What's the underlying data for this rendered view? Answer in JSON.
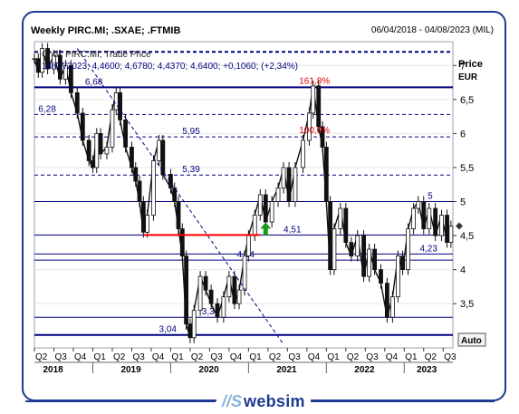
{
  "header": {
    "title": "Weekly PIRC.MI; .SXAE; .FTMIB",
    "range": "06/04/2018 - 04/08/2023 (MIL)"
  },
  "legend": {
    "line1": "Cndl; PIRC.MI; Trade Price",
    "line2": "14/07/2023; 4,4600; 4,6780; 4,4370; 4,6400; +0,1060; (+2,34%)"
  },
  "axis": {
    "price_label": "Price",
    "currency_label": "EUR",
    "auto_label": "Auto"
  },
  "footer": {
    "brand": "websim"
  },
  "colors": {
    "frame": "#1f3a93",
    "level_line": "#000080",
    "fib_text": "#e00000",
    "support_line": "#ff0000",
    "arrow": "#1a9a1a",
    "trend_line": "#000080"
  },
  "chart_data": {
    "type": "candlestick",
    "y_range": [
      2.85,
      7.35
    ],
    "y_ticks": [
      {
        "v": 7,
        "label": "7"
      },
      {
        "v": 6.5,
        "label": "6,5"
      },
      {
        "v": 6,
        "label": "6"
      },
      {
        "v": 5.5,
        "label": "5,5"
      },
      {
        "v": 5,
        "label": "5"
      },
      {
        "v": 4.5,
        "label": "4,5"
      },
      {
        "v": 4,
        "label": "4"
      },
      {
        "v": 3.5,
        "label": "3,5"
      }
    ],
    "x_range": [
      2018.25,
      2023.625
    ],
    "quarter_ticks": [
      {
        "t": 2018.25,
        "label": "Q2"
      },
      {
        "t": 2018.5,
        "label": "Q3"
      },
      {
        "t": 2018.75,
        "label": "Q4"
      },
      {
        "t": 2019.0,
        "label": "Q1"
      },
      {
        "t": 2019.25,
        "label": "Q2"
      },
      {
        "t": 2019.5,
        "label": "Q3"
      },
      {
        "t": 2019.75,
        "label": "Q4"
      },
      {
        "t": 2020.0,
        "label": "Q1"
      },
      {
        "t": 2020.25,
        "label": "Q2"
      },
      {
        "t": 2020.5,
        "label": "Q3"
      },
      {
        "t": 2020.75,
        "label": "Q4"
      },
      {
        "t": 2021.0,
        "label": "Q1"
      },
      {
        "t": 2021.25,
        "label": "Q2"
      },
      {
        "t": 2021.5,
        "label": "Q3"
      },
      {
        "t": 2021.75,
        "label": "Q4"
      },
      {
        "t": 2022.0,
        "label": "Q1"
      },
      {
        "t": 2022.25,
        "label": "Q2"
      },
      {
        "t": 2022.5,
        "label": "Q3"
      },
      {
        "t": 2022.75,
        "label": "Q4"
      },
      {
        "t": 2023.0,
        "label": "Q1"
      },
      {
        "t": 2023.25,
        "label": "Q2"
      },
      {
        "t": 2023.5,
        "label": "Q3"
      }
    ],
    "years": [
      {
        "t": 2018.5,
        "label": "2018"
      },
      {
        "t": 2019.5,
        "label": "2019"
      },
      {
        "t": 2020.5,
        "label": "2020"
      },
      {
        "t": 2021.5,
        "label": "2021"
      },
      {
        "t": 2022.5,
        "label": "2022"
      },
      {
        "t": 2023.3,
        "label": "2023"
      }
    ],
    "levels": [
      {
        "v": 7.2,
        "label": "",
        "style": "dashed-thick",
        "lx": 0
      },
      {
        "v": 6.68,
        "label": "6,68",
        "style": "solid-thick",
        "lx": 2018.9
      },
      {
        "v": 6.28,
        "label": "6,28",
        "style": "dashed",
        "lx": 2018.3
      },
      {
        "v": 5.95,
        "label": "5,95",
        "style": "dashed",
        "lx": 2020.15
      },
      {
        "v": 5.39,
        "label": "5,39",
        "style": "dashed",
        "lx": 2020.15
      },
      {
        "v": 5.0,
        "label": "5",
        "style": "solid",
        "lx": 2023.3
      },
      {
        "v": 4.51,
        "label": "4,51",
        "style": "solid",
        "lx": 2021.45
      },
      {
        "v": 4.23,
        "label": "4,23",
        "style": "solid",
        "lx": 2023.2
      },
      {
        "v": 4.14,
        "label": "4,14",
        "style": "solid",
        "lx": 2020.85
      },
      {
        "v": 3.3,
        "label": "3,3",
        "style": "solid",
        "lx": 2020.4
      },
      {
        "v": 3.04,
        "label": "3,04",
        "style": "solid-thick",
        "lx": 2019.85
      }
    ],
    "fib": [
      {
        "v": 6.68,
        "label": "161,8%",
        "x": 2021.65
      },
      {
        "v": 5.95,
        "label": "100,0%",
        "x": 2021.65
      }
    ],
    "support": {
      "x1": 2019.65,
      "x2": 2021.15,
      "v": 4.51
    },
    "trendline": {
      "x1": 2018.8,
      "v1": 7.25,
      "x2": 2021.45,
      "v2": 2.9
    },
    "arrow": {
      "x": 2021.22,
      "v": 4.51
    },
    "price_path": [
      [
        2018.25,
        7.1
      ],
      [
        2018.3,
        6.9
      ],
      [
        2018.35,
        7.25
      ],
      [
        2018.42,
        6.95
      ],
      [
        2018.5,
        7.15
      ],
      [
        2018.58,
        6.8
      ],
      [
        2018.65,
        7.0
      ],
      [
        2018.72,
        6.6
      ],
      [
        2018.8,
        6.3
      ],
      [
        2018.87,
        5.9
      ],
      [
        2018.95,
        5.6
      ],
      [
        2019.0,
        5.5
      ],
      [
        2019.05,
        6.0
      ],
      [
        2019.1,
        5.7
      ],
      [
        2019.18,
        5.8
      ],
      [
        2019.25,
        6.35
      ],
      [
        2019.3,
        6.6
      ],
      [
        2019.35,
        6.2
      ],
      [
        2019.42,
        5.8
      ],
      [
        2019.5,
        5.5
      ],
      [
        2019.55,
        5.3
      ],
      [
        2019.6,
        5.0
      ],
      [
        2019.65,
        4.55
      ],
      [
        2019.7,
        4.8
      ],
      [
        2019.78,
        5.6
      ],
      [
        2019.85,
        5.9
      ],
      [
        2019.9,
        5.4
      ],
      [
        2020.0,
        5.2
      ],
      [
        2020.05,
        5.0
      ],
      [
        2020.1,
        4.6
      ],
      [
        2020.15,
        4.2
      ],
      [
        2020.2,
        3.2
      ],
      [
        2020.25,
        3.0
      ],
      [
        2020.3,
        3.4
      ],
      [
        2020.38,
        3.9
      ],
      [
        2020.45,
        3.7
      ],
      [
        2020.52,
        3.5
      ],
      [
        2020.6,
        3.3
      ],
      [
        2020.68,
        3.6
      ],
      [
        2020.75,
        3.9
      ],
      [
        2020.82,
        3.5
      ],
      [
        2020.88,
        3.7
      ],
      [
        2020.95,
        4.2
      ],
      [
        2021.0,
        4.5
      ],
      [
        2021.08,
        4.8
      ],
      [
        2021.15,
        5.1
      ],
      [
        2021.22,
        4.7
      ],
      [
        2021.3,
        5.0
      ],
      [
        2021.38,
        5.2
      ],
      [
        2021.45,
        5.5
      ],
      [
        2021.52,
        5.0
      ],
      [
        2021.6,
        5.5
      ],
      [
        2021.7,
        5.9
      ],
      [
        2021.78,
        6.3
      ],
      [
        2021.83,
        6.7
      ],
      [
        2021.9,
        6.1
      ],
      [
        2021.95,
        5.8
      ],
      [
        2022.0,
        5.0
      ],
      [
        2022.05,
        4.0
      ],
      [
        2022.1,
        4.6
      ],
      [
        2022.18,
        4.9
      ],
      [
        2022.25,
        4.4
      ],
      [
        2022.32,
        4.2
      ],
      [
        2022.4,
        4.5
      ],
      [
        2022.48,
        3.9
      ],
      [
        2022.55,
        4.3
      ],
      [
        2022.62,
        4.0
      ],
      [
        2022.7,
        3.8
      ],
      [
        2022.78,
        3.3
      ],
      [
        2022.85,
        3.6
      ],
      [
        2022.92,
        4.2
      ],
      [
        2022.98,
        4.0
      ],
      [
        2023.05,
        4.6
      ],
      [
        2023.12,
        4.9
      ],
      [
        2023.18,
        5.0
      ],
      [
        2023.25,
        4.6
      ],
      [
        2023.32,
        4.9
      ],
      [
        2023.4,
        4.5
      ],
      [
        2023.48,
        4.8
      ],
      [
        2023.55,
        4.4
      ],
      [
        2023.6,
        4.64
      ]
    ]
  }
}
